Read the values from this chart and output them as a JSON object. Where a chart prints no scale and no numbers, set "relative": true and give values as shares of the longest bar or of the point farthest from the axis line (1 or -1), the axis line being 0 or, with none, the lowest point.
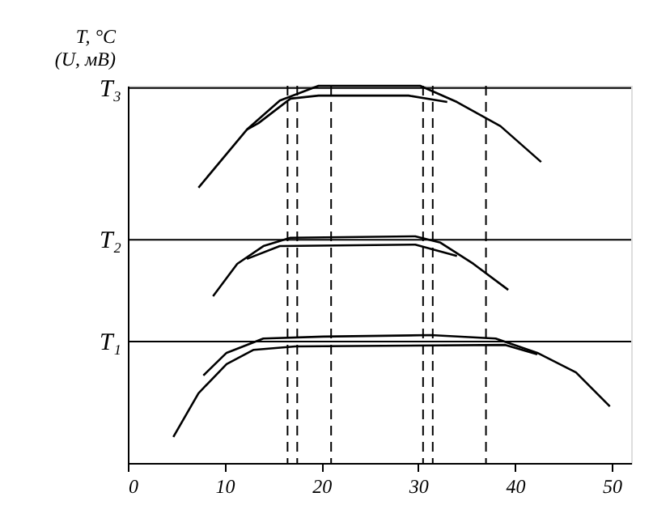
{
  "chart_data": {
    "type": "line",
    "relative": true,
    "ylabel": "T, °C\n(U, мВ)",
    "xlim": [
      0,
      52
    ],
    "xticks": [
      0,
      10,
      20,
      30,
      40,
      50
    ],
    "grid": false,
    "marker": "none",
    "line_style": "solid",
    "series": [
      {
        "color": "#000000",
        "x": [
          7.3,
          12.3,
          15.7,
          19.7,
          30.2,
          34,
          38.5,
          42.7
        ],
        "values": [
          0.73,
          0.884,
          0.961,
          1,
          1,
          0.957,
          0.893,
          0.798
        ]
      },
      {
        "color": "#000000",
        "x": [
          12.3,
          13.5,
          16.8,
          19.7,
          29,
          33
        ],
        "values": [
          0.884,
          0.901,
          0.966,
          0.974,
          0.974,
          0.957
        ]
      },
      {
        "color": "#000000",
        "x": [
          8.8,
          11.3,
          14,
          16.8,
          29.7,
          32.3,
          35.7,
          39.3
        ],
        "values": [
          0.442,
          0.528,
          0.575,
          0.597,
          0.601,
          0.584,
          0.528,
          0.459
        ]
      },
      {
        "color": "#000000",
        "x": [
          12.3,
          15.7,
          29.7,
          34
        ],
        "values": [
          0.541,
          0.575,
          0.579,
          0.549
        ]
      },
      {
        "color": "#000000",
        "x": [
          7.8,
          10.2,
          14,
          20.2,
          31.3,
          38,
          42.3,
          46.3,
          49.8
        ],
        "values": [
          0.232,
          0.292,
          0.33,
          0.335,
          0.339,
          0.33,
          0.292,
          0.24,
          0.15
        ]
      },
      {
        "color": "#000000",
        "x": [
          4.7,
          7.3,
          10.2,
          13,
          17.3,
          39,
          42.3
        ],
        "values": [
          0.069,
          0.185,
          0.262,
          0.3,
          0.309,
          0.313,
          0.288
        ]
      }
    ],
    "ref_lines": [
      {
        "axis": "y",
        "value": 0.994,
        "label": "T₃",
        "color": "#000000",
        "line_style": "solid"
      },
      {
        "axis": "y",
        "value": 0.592,
        "label": "T₂",
        "color": "#000000",
        "line_style": "solid"
      },
      {
        "axis": "y",
        "value": 0.322,
        "label": "T₁",
        "color": "#000000",
        "line_style": "solid"
      },
      {
        "axis": "x",
        "value": 16.5,
        "color": "#000000",
        "line_style": "dashed"
      },
      {
        "axis": "x",
        "value": 17.5,
        "color": "#000000",
        "line_style": "dashed"
      },
      {
        "axis": "x",
        "value": 21,
        "color": "#000000",
        "line_style": "dashed"
      },
      {
        "axis": "x",
        "value": 30.5,
        "color": "#000000",
        "line_style": "dashed"
      },
      {
        "axis": "x",
        "value": 31.5,
        "color": "#000000",
        "line_style": "dashed"
      },
      {
        "axis": "x",
        "value": 37,
        "color": "#000000",
        "line_style": "dashed"
      }
    ]
  }
}
